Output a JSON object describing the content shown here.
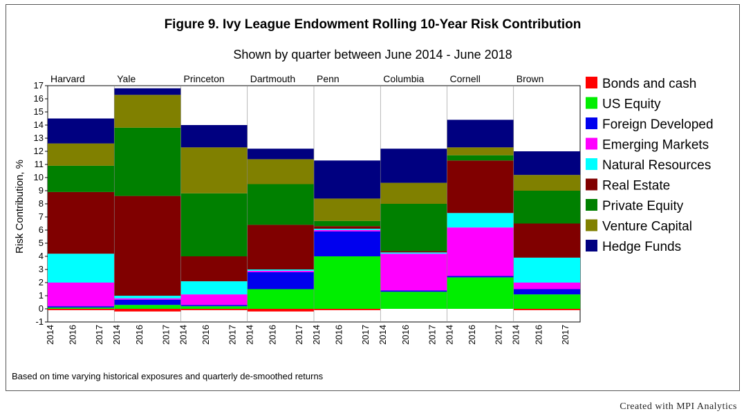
{
  "chart_data": {
    "type": "area",
    "title": "Figure 9. Ivy League Endowment Rolling 10-Year Risk Contribution",
    "subtitle": "Shown by quarter between June 2014 - June 2018",
    "ylabel": "Risk Contribution, %",
    "ylim": [
      -1,
      17
    ],
    "yticks": [
      -1,
      0,
      1,
      2,
      3,
      4,
      5,
      6,
      7,
      8,
      9,
      10,
      11,
      12,
      13,
      14,
      15,
      16,
      17
    ],
    "xtick_labels": [
      "2014",
      "2016",
      "2017"
    ],
    "footnote": "Based on time varying historical exposures and quarterly de-smoothed returns",
    "series_names": [
      "Bonds and cash",
      "US Equity",
      "Foreign Developed",
      "Emerging Markets",
      "Natural Resources",
      "Real Estate",
      "Private Equity",
      "Venture Capital",
      "Hedge Funds"
    ],
    "colors": [
      "#ff0000",
      "#00ee00",
      "#0000ee",
      "#ff00ff",
      "#00ffff",
      "#800000",
      "#008000",
      "#808000",
      "#000080"
    ],
    "groups": [
      {
        "name": "Harvard",
        "values": [
          -0.1,
          0.1,
          0.1,
          1.8,
          2.2,
          4.7,
          2.0,
          1.7,
          1.9
        ]
      },
      {
        "name": "Yale",
        "values": [
          -0.2,
          0.3,
          0.4,
          0.1,
          0.2,
          7.6,
          5.2,
          2.5,
          0.5
        ]
      },
      {
        "name": "Princeton",
        "values": [
          -0.1,
          0.2,
          0.1,
          0.8,
          1.0,
          1.9,
          4.8,
          3.5,
          1.7
        ]
      },
      {
        "name": "Dartmouth",
        "values": [
          -0.2,
          1.5,
          1.3,
          0.1,
          0.1,
          3.4,
          3.1,
          1.9,
          0.8
        ]
      },
      {
        "name": "Penn",
        "values": [
          -0.1,
          4.0,
          1.9,
          0.1,
          0.1,
          0.2,
          0.4,
          1.7,
          2.9
        ]
      },
      {
        "name": "Columbia",
        "values": [
          0.0,
          1.3,
          0.1,
          2.8,
          0.1,
          0.1,
          3.6,
          1.6,
          2.6
        ]
      },
      {
        "name": "Cornell",
        "values": [
          0.0,
          2.4,
          0.1,
          3.7,
          1.1,
          4.0,
          0.4,
          0.6,
          2.1
        ]
      },
      {
        "name": "Brown",
        "values": [
          -0.1,
          1.1,
          0.4,
          0.5,
          1.9,
          2.6,
          2.5,
          1.2,
          1.8
        ]
      }
    ]
  },
  "credit": "Created with MPI Analytics"
}
